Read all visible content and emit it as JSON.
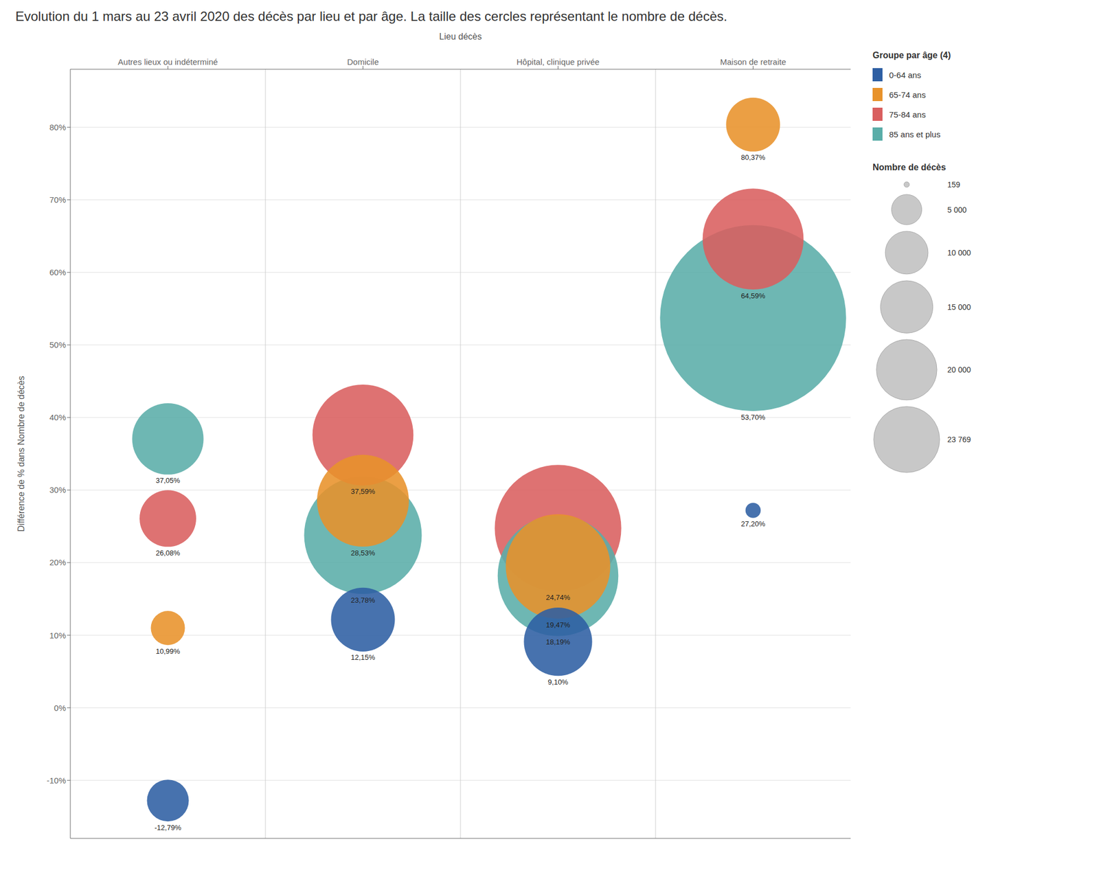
{
  "chart_data": {
    "type": "bubble",
    "title": "Evolution du 1 mars au 23 avril 2020 des décès par lieu et par âge. La taille des cercles représentant le nombre de décès.",
    "xlabel": "Lieu décès",
    "ylabel": "Différence de % dans Nombre de décès",
    "categories": [
      "Autres lieux ou indéterminé",
      "Domicile",
      "Hôpital, clinique privée",
      "Maison de retraite"
    ],
    "legend_title": "Groupe par âge (4)",
    "series": [
      {
        "name": "0-64 ans",
        "color": "#2e5fa3",
        "values": [
          -12.79,
          12.15,
          9.1,
          27.2
        ],
        "sizes": [
          1200,
          2800,
          3200,
          159
        ],
        "value_labels": [
          "-12,79%",
          "12,15%",
          "9,10%",
          "27,20%"
        ]
      },
      {
        "name": "65-74 ans",
        "color": "#e8922a",
        "values": [
          10.99,
          28.53,
          19.47,
          80.37
        ],
        "sizes": [
          800,
          5800,
          7500,
          2000
        ],
        "value_labels": [
          "10,99%",
          "28,53%",
          "19,47%",
          "80,37%"
        ]
      },
      {
        "name": "75-84 ans",
        "color": "#d95f5f",
        "values": [
          26.08,
          37.59,
          24.74,
          64.59
        ],
        "sizes": [
          2200,
          7000,
          11000,
          7000
        ],
        "value_labels": [
          "26,08%",
          "37,59%",
          "24,74%",
          "64,59%"
        ]
      },
      {
        "name": "85 ans et plus",
        "color": "#5aada8",
        "values": [
          37.05,
          23.78,
          18.19,
          53.7
        ],
        "sizes": [
          3500,
          9500,
          10000,
          23769
        ],
        "value_labels": [
          "37,05%",
          "23,78%",
          "18,19%",
          "53,70%"
        ]
      }
    ],
    "size_legend": {
      "title": "Nombre de décès",
      "values": [
        159,
        5000,
        10000,
        15000,
        20000,
        23769
      ],
      "labels": [
        "159",
        "5 000",
        "10 000",
        "15 000",
        "20 000",
        "23 769"
      ]
    },
    "ylim": [
      -18,
      88
    ],
    "yticks": [
      {
        "value": -10,
        "label": "-10%"
      },
      {
        "value": 0,
        "label": "0%"
      },
      {
        "value": 10,
        "label": "10%"
      },
      {
        "value": 20,
        "label": "20%"
      },
      {
        "value": 30,
        "label": "30%"
      },
      {
        "value": 40,
        "label": "40%"
      },
      {
        "value": 50,
        "label": "50%"
      },
      {
        "value": 60,
        "label": "60%"
      },
      {
        "value": 70,
        "label": "70%"
      },
      {
        "value": 80,
        "label": "80%"
      }
    ],
    "grid": true,
    "legend": "right"
  }
}
